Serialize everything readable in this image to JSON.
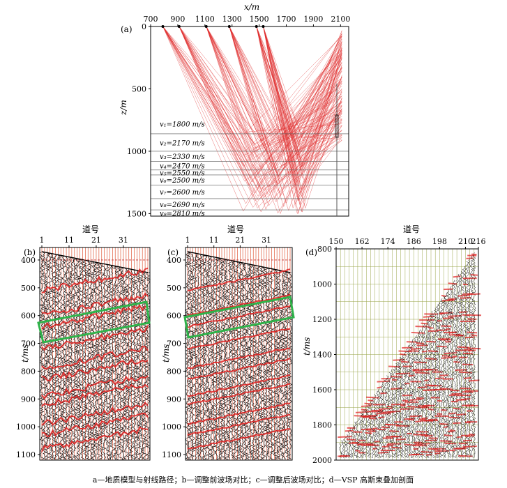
{
  "panel_a": {
    "label": "(a)",
    "xlabel": "x/m",
    "ylabel": "z/m",
    "xticks": [
      "700",
      "900",
      "1100",
      "1300",
      "1500",
      "1700",
      "1900",
      "2100"
    ],
    "yticks": [
      "0",
      "500",
      "1000",
      "1500"
    ],
    "velocity_layers": [
      {
        "label": "v₁=1800 m/s"
      },
      {
        "label": "v₂=2170 m/s"
      },
      {
        "label": "v₃=2330 m/s"
      },
      {
        "label": "v₄=2470 m/s"
      },
      {
        "label": "v₅=2550 m/s"
      },
      {
        "label": "v₆=2500 m/s"
      },
      {
        "label": "v₇=2600 m/s"
      },
      {
        "label": "v₈=2690 m/s"
      },
      {
        "label": "v₉=2810 m/s"
      }
    ],
    "interfaces_m": [
      860,
      1000,
      1080,
      1150,
      1190,
      1270,
      1380,
      1470
    ],
    "sources_x_m": [
      790,
      910,
      1110,
      1280,
      1480,
      1530
    ],
    "receiver_x_m": 2110,
    "ray_color": "#e03030"
  },
  "panel_b": {
    "label": "(b)",
    "xlabel": "道号",
    "ylabel": "t/ms",
    "xticks": [
      "1",
      "11",
      "21",
      "31"
    ],
    "yticks": [
      "400",
      "500",
      "600",
      "700",
      "800",
      "900",
      "1000",
      "1100"
    ]
  },
  "panel_c": {
    "label": "(c)",
    "xlabel": "道号",
    "ylabel": "t/ms",
    "xticks": [
      "1",
      "11",
      "21",
      "31"
    ],
    "yticks": [
      "400",
      "500",
      "600",
      "700",
      "800",
      "900",
      "1000",
      "1100"
    ]
  },
  "panel_d": {
    "label": "(d)",
    "xlabel": "道号",
    "ylabel": "t/ms",
    "xticks": [
      "150",
      "162",
      "174",
      "186",
      "198",
      "210",
      "216"
    ],
    "yticks": [
      "800",
      "1000",
      "1200",
      "1400",
      "1600",
      "1800",
      "2000"
    ]
  },
  "caption": "a—地质模型与射线路径；b—调整前波场对比；c—调整后波场对比；d—VSP 高斯束叠加剖面",
  "colors": {
    "ray": "#e03030",
    "highlight_box": "#2fb34a",
    "trace": "#000000",
    "event": "#e02020",
    "grid": "#9aa54a"
  }
}
